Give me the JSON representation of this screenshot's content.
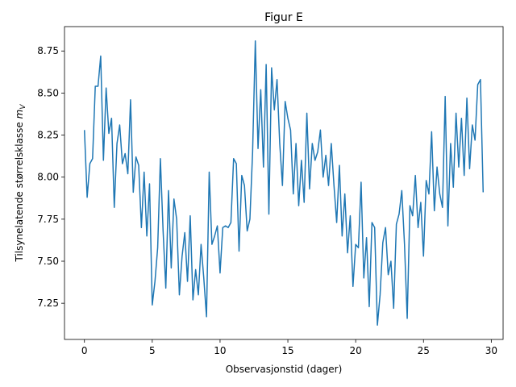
{
  "chart_data": {
    "type": "line",
    "title": "Figur E",
    "xlabel": "Observasjonstid (dager)",
    "ylabel": "Tilsynelatende størrelsklasse",
    "ylabel_symbol": "m",
    "ylabel_subscript": "V",
    "color": "#1f77b4",
    "x": [
      0.0,
      0.2,
      0.4,
      0.6,
      0.8,
      1.0,
      1.2,
      1.4,
      1.6,
      1.8,
      2.0,
      2.2,
      2.4,
      2.6,
      2.8,
      3.0,
      3.2,
      3.4,
      3.6,
      3.8,
      4.0,
      4.2,
      4.4,
      4.6,
      4.8,
      5.0,
      5.2,
      5.4,
      5.6,
      5.8,
      6.0,
      6.2,
      6.4,
      6.6,
      6.8,
      7.0,
      7.2,
      7.4,
      7.6,
      7.8,
      8.0,
      8.2,
      8.4,
      8.6,
      8.8,
      9.0,
      9.2,
      9.4,
      9.6,
      9.8,
      10.0,
      10.2,
      10.4,
      10.6,
      10.8,
      11.0,
      11.2,
      11.4,
      11.6,
      11.8,
      12.0,
      12.2,
      12.4,
      12.6,
      12.8,
      13.0,
      13.2,
      13.4,
      13.6,
      13.8,
      14.0,
      14.2,
      14.4,
      14.6,
      14.8,
      15.0,
      15.2,
      15.4,
      15.6,
      15.8,
      16.0,
      16.2,
      16.4,
      16.6,
      16.8,
      17.0,
      17.2,
      17.4,
      17.6,
      17.8,
      18.0,
      18.2,
      18.4,
      18.6,
      18.8,
      19.0,
      19.2,
      19.4,
      19.6,
      19.8,
      20.0,
      20.2,
      20.4,
      20.6,
      20.8,
      21.0,
      21.2,
      21.4,
      21.6,
      21.8,
      22.0,
      22.2,
      22.4,
      22.6,
      22.8,
      23.0,
      23.2,
      23.4,
      23.6,
      23.8,
      24.0,
      24.2,
      24.4,
      24.6,
      24.8,
      25.0,
      25.2,
      25.4,
      25.6,
      25.8,
      26.0,
      26.2,
      26.4,
      26.6,
      26.8,
      27.0,
      27.2,
      27.4,
      27.6,
      27.8,
      28.0,
      28.2,
      28.4,
      28.6,
      28.8,
      29.0,
      29.2,
      29.4
    ],
    "values": [
      8.28,
      7.88,
      8.08,
      8.11,
      8.54,
      8.54,
      8.72,
      8.1,
      8.53,
      8.26,
      8.35,
      7.82,
      8.2,
      8.31,
      8.08,
      8.14,
      8.02,
      8.46,
      7.91,
      8.12,
      8.07,
      7.7,
      8.03,
      7.65,
      7.96,
      7.24,
      7.38,
      7.58,
      8.11,
      7.68,
      7.34,
      7.92,
      7.46,
      7.87,
      7.75,
      7.3,
      7.53,
      7.67,
      7.38,
      7.77,
      7.27,
      7.45,
      7.3,
      7.6,
      7.4,
      7.17,
      8.03,
      7.6,
      7.65,
      7.71,
      7.43,
      7.7,
      7.71,
      7.7,
      7.73,
      8.11,
      8.08,
      7.56,
      8.01,
      7.95,
      7.68,
      7.75,
      8.15,
      8.81,
      8.17,
      8.52,
      8.06,
      8.67,
      7.78,
      8.65,
      8.4,
      8.58,
      8.2,
      7.95,
      8.45,
      8.35,
      8.28,
      7.9,
      8.2,
      7.83,
      8.1,
      7.85,
      8.38,
      7.93,
      8.2,
      8.1,
      8.15,
      8.28,
      8.0,
      8.13,
      7.95,
      8.2,
      7.95,
      7.73,
      8.07,
      7.65,
      7.9,
      7.55,
      7.77,
      7.35,
      7.6,
      7.58,
      7.97,
      7.4,
      7.64,
      7.23,
      7.73,
      7.7,
      7.12,
      7.3,
      7.61,
      7.7,
      7.42,
      7.5,
      7.22,
      7.72,
      7.78,
      7.92,
      7.6,
      7.16,
      7.83,
      7.77,
      8.01,
      7.7,
      7.85,
      7.53,
      7.98,
      7.9,
      8.27,
      7.8,
      8.06,
      7.9,
      7.82,
      8.48,
      7.71,
      8.2,
      7.94,
      8.38,
      8.06,
      8.35,
      8.01,
      8.47,
      8.05,
      8.31,
      8.22,
      8.55,
      8.58,
      7.91
    ],
    "xlim": [
      -1.47,
      30.87
    ],
    "xticks": [
      0,
      5,
      10,
      15,
      20,
      25,
      30
    ],
    "ylim": [
      7.035,
      8.895
    ],
    "yticks": [
      7.25,
      {
        "value": 7.5,
        "label": "7.50"
      },
      7.75,
      {
        "value": 8,
        "label": "8.00"
      },
      8.25,
      {
        "value": 8.5,
        "label": "8.50"
      },
      8.75
    ]
  }
}
